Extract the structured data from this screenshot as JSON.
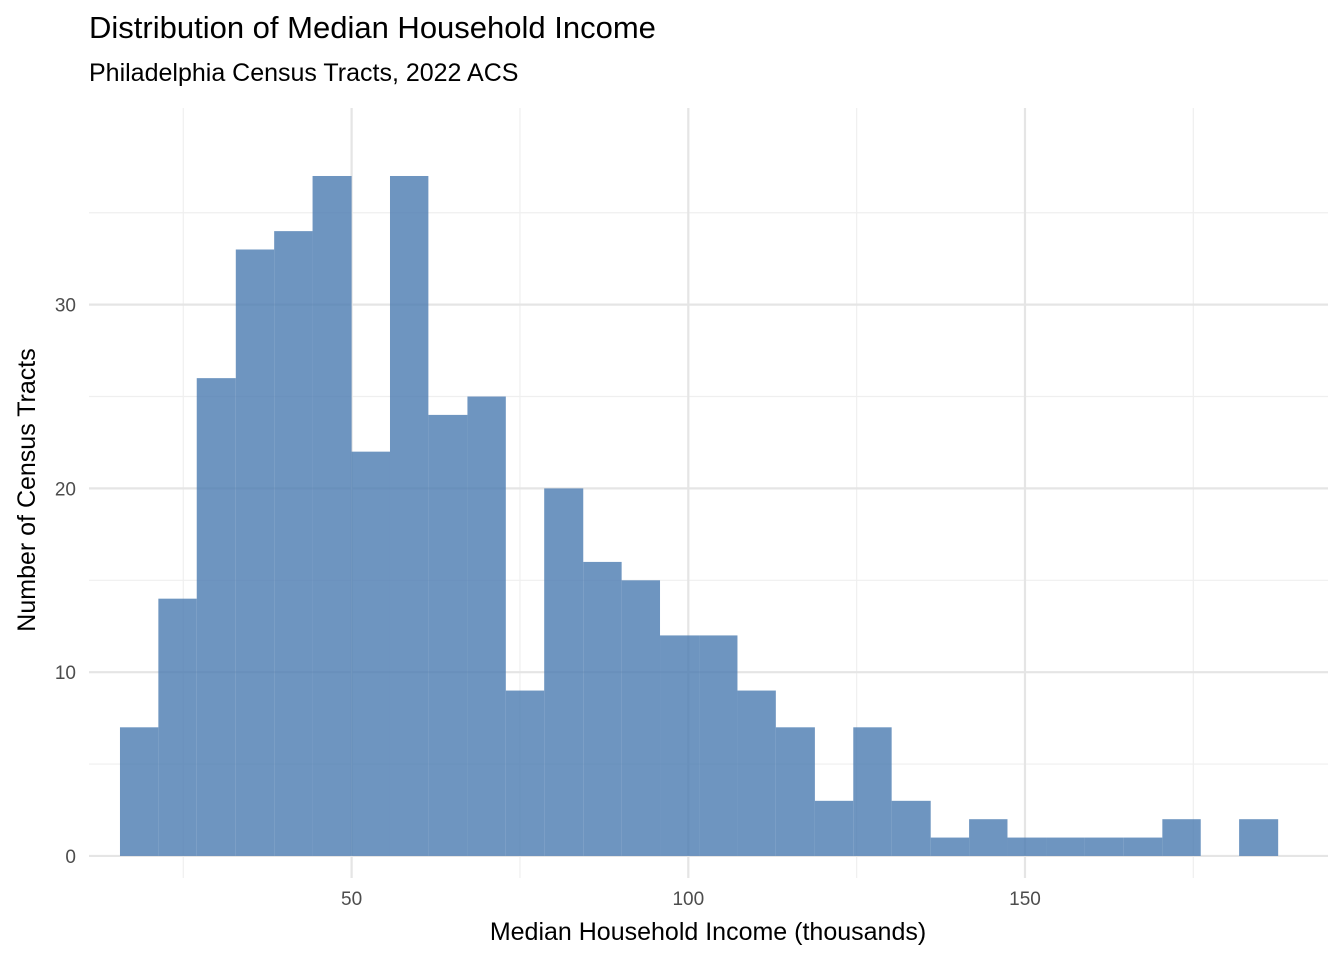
{
  "chart_data": {
    "type": "bar",
    "subtype": "histogram",
    "title": "Distribution of Median Household Income",
    "subtitle": "Philadelphia Census Tracts, 2022 ACS",
    "xlabel": "Median Household Income (thousands)",
    "ylabel": "Number of Census Tracts",
    "bin_width": 5.73,
    "bins": [
      {
        "x0": 15.6,
        "x1": 21.3,
        "count": 7
      },
      {
        "x0": 21.3,
        "x1": 27.0,
        "count": 14
      },
      {
        "x0": 27.0,
        "x1": 32.8,
        "count": 26
      },
      {
        "x0": 32.8,
        "x1": 38.5,
        "count": 33
      },
      {
        "x0": 38.5,
        "x1": 44.2,
        "count": 34
      },
      {
        "x0": 44.2,
        "x1": 50.0,
        "count": 37
      },
      {
        "x0": 50.0,
        "x1": 55.7,
        "count": 22
      },
      {
        "x0": 55.7,
        "x1": 61.4,
        "count": 37
      },
      {
        "x0": 61.4,
        "x1": 67.2,
        "count": 24
      },
      {
        "x0": 67.2,
        "x1": 72.9,
        "count": 25
      },
      {
        "x0": 72.9,
        "x1": 78.6,
        "count": 9
      },
      {
        "x0": 78.6,
        "x1": 84.4,
        "count": 20
      },
      {
        "x0": 84.4,
        "x1": 90.1,
        "count": 16
      },
      {
        "x0": 90.1,
        "x1": 95.8,
        "count": 15
      },
      {
        "x0": 95.8,
        "x1": 101.6,
        "count": 12
      },
      {
        "x0": 101.6,
        "x1": 107.3,
        "count": 12
      },
      {
        "x0": 107.3,
        "x1": 113.0,
        "count": 9
      },
      {
        "x0": 113.0,
        "x1": 118.8,
        "count": 7
      },
      {
        "x0": 118.8,
        "x1": 124.5,
        "count": 3
      },
      {
        "x0": 124.5,
        "x1": 130.2,
        "count": 7
      },
      {
        "x0": 130.2,
        "x1": 136.0,
        "count": 3
      },
      {
        "x0": 136.0,
        "x1": 141.7,
        "count": 1
      },
      {
        "x0": 141.7,
        "x1": 147.4,
        "count": 2
      },
      {
        "x0": 147.4,
        "x1": 153.2,
        "count": 1
      },
      {
        "x0": 153.2,
        "x1": 158.9,
        "count": 1
      },
      {
        "x0": 158.9,
        "x1": 164.6,
        "count": 1
      },
      {
        "x0": 164.6,
        "x1": 170.4,
        "count": 1
      },
      {
        "x0": 170.4,
        "x1": 176.1,
        "count": 2
      },
      {
        "x0": 176.1,
        "x1": 181.8,
        "count": 0
      },
      {
        "x0": 181.8,
        "x1": 187.6,
        "count": 2
      }
    ],
    "xlim": [
      11.0,
      195.0
    ],
    "ylim": [
      -1.2,
      40.7
    ],
    "x_ticks": [
      50,
      100,
      150
    ],
    "x_minor_ticks": [
      25,
      75,
      125,
      175
    ],
    "y_ticks": [
      0,
      10,
      20,
      30
    ],
    "y_minor_ticks": [
      5,
      15,
      25,
      35
    ],
    "grid": true,
    "legend": "none",
    "bar_color": "#4a7bb0",
    "bar_opacity": 0.8,
    "grid_major_color": "#e5e5e5",
    "grid_minor_color": "#efefef"
  }
}
